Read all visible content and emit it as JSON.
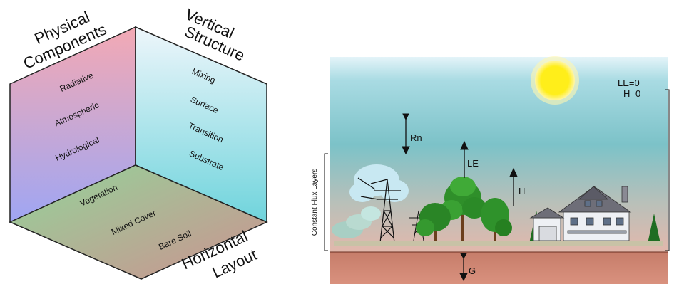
{
  "cube": {
    "physical_components": {
      "title_line1": "Physical",
      "title_line2": "Components",
      "items": [
        "Radiative",
        "Atmospheric",
        "Hydrological"
      ]
    },
    "vertical_structure": {
      "title_line1": "Vertical",
      "title_line2": "Structure",
      "items": [
        "Mixing",
        "Surface",
        "Transition",
        "Substrate"
      ]
    },
    "horizontal_layout": {
      "title_line1": "Horizontal",
      "title_line2": "Layout",
      "items": [
        "Vegetation",
        "Mixed Cover",
        "Bare Soil"
      ]
    },
    "colors": {
      "left_face_top": "#f3a9b4",
      "left_face_bottom": "#9fa6f3",
      "right_face_top": "#e8f2f8",
      "right_face_bottom": "#6fd4dc",
      "bottom_face_left": "#93d49a",
      "bottom_face_right": "#cc9290"
    }
  },
  "scene": {
    "labels": {
      "rn": "Rn",
      "le": "LE",
      "h": "H",
      "g": "G",
      "top_right_le": "LE=0",
      "top_right_h": "H=0",
      "constant_flux_layers": "Constant Flux Layers"
    },
    "icons": [
      "sun-icon",
      "power-tower-icon",
      "tree-icon",
      "house-icon"
    ],
    "colors": {
      "sky_top": "#d8eef6",
      "sky_mid": "#7cc2c8",
      "sky_bottom": "#dcb7ac",
      "ground": "#c9806d",
      "sun": "#ffee1a",
      "tree_green": "#2f9a2c"
    }
  }
}
